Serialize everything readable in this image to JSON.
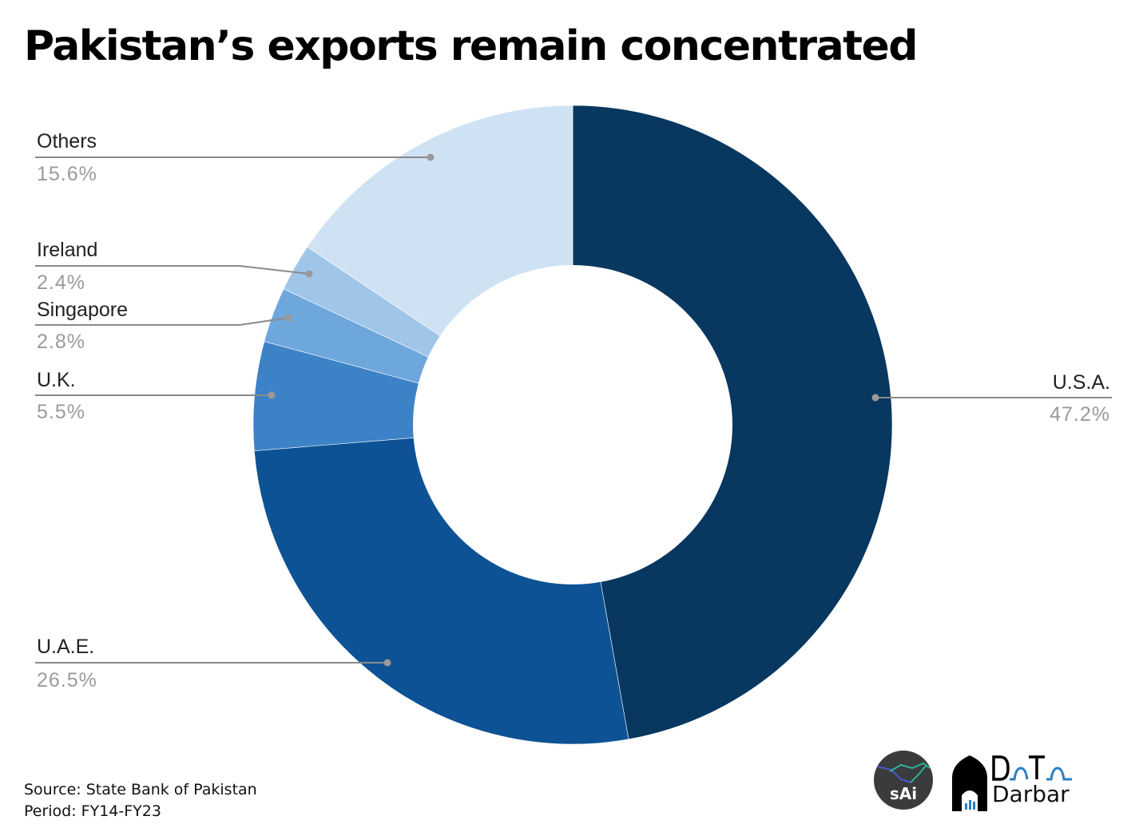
{
  "title": "Pakistan’s exports remain concentrated",
  "footer": {
    "source": "Source: State Bank of Pakistan",
    "period": "Period: FY14-FY23"
  },
  "logos": {
    "sai": "sAi",
    "darbar_top": "DaTa",
    "darbar_bottom": "Darbar"
  },
  "colors": {
    "usa": "#08375f",
    "uae": "#0d5294",
    "uk": "#3d82c6",
    "singapore": "#6ea7dc",
    "ireland": "#9fc5e8",
    "others": "#cfe2f3",
    "leader": "#8a8a8a"
  },
  "labels": {
    "usa": {
      "name": "U.S.A.",
      "pct": "47.2%"
    },
    "uae": {
      "name": "U.A.E.",
      "pct": "26.5%"
    },
    "uk": {
      "name": "U.K.",
      "pct": "5.5%"
    },
    "singapore": {
      "name": "Singapore",
      "pct": "2.8%"
    },
    "ireland": {
      "name": "Ireland",
      "pct": "2.4%"
    },
    "others": {
      "name": "Others",
      "pct": "15.6%"
    }
  },
  "chart_data": {
    "type": "pie",
    "subtype": "donut",
    "title": "Pakistan’s exports remain concentrated",
    "categories": [
      "U.S.A.",
      "U.A.E.",
      "U.K.",
      "Singapore",
      "Ireland",
      "Others"
    ],
    "values": [
      47.2,
      26.5,
      5.5,
      2.8,
      2.4,
      15.6
    ],
    "unit": "%",
    "colors": [
      "#08375f",
      "#0d5294",
      "#3d82c6",
      "#6ea7dc",
      "#9fc5e8",
      "#cfe2f3"
    ],
    "start_angle": "top (12 o'clock), clockwise",
    "legend": "leader-line labels",
    "source": "State Bank of Pakistan",
    "period": "FY14-FY23"
  }
}
